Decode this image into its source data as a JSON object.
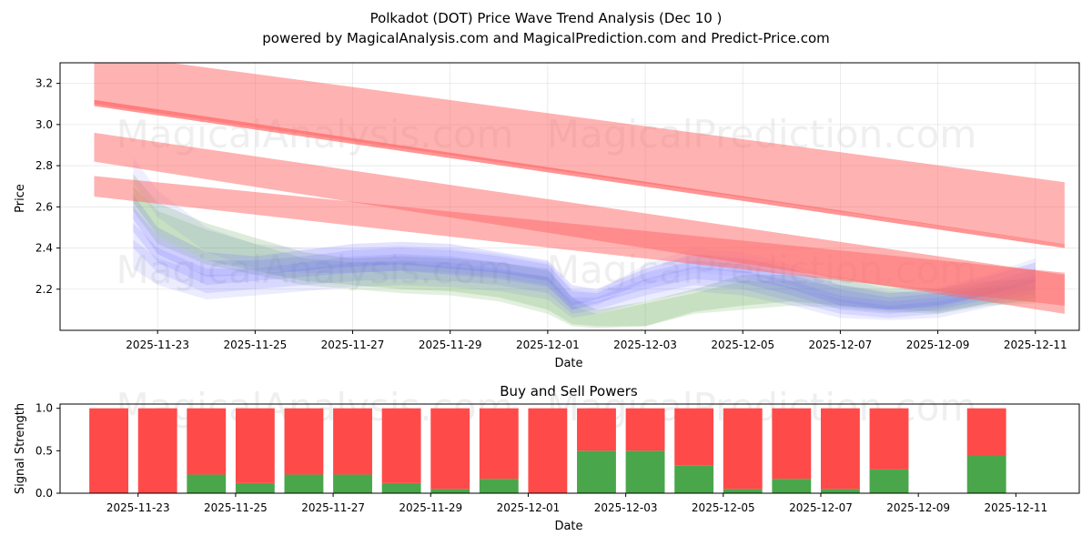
{
  "chart_data": [
    {
      "type": "area",
      "title": "Polkadot (DOT) Price Wave Trend Analysis (Dec 10 )",
      "subtitle": "powered by MagicalAnalysis.com and MagicalPrediction.com and Predict-Price.com",
      "xlabel": "Date",
      "ylabel": "Price",
      "ylim": [
        2.0,
        3.3
      ],
      "xlim_days": [
        -1.0,
        19.9
      ],
      "x_ticks": [
        "2025-11-23",
        "2025-11-25",
        "2025-11-27",
        "2025-11-29",
        "2025-12-01",
        "2025-12-03",
        "2025-12-05",
        "2025-12-07",
        "2025-12-09",
        "2025-12-11"
      ],
      "x_tick_days": [
        1,
        3,
        5,
        7,
        9,
        11,
        13,
        15,
        17,
        19
      ],
      "y_ticks": [
        2.2,
        2.4,
        2.6,
        2.8,
        3.0,
        3.2
      ],
      "grid": true,
      "watermarks": [
        "MagicalAnalysis.com",
        "MagicalPrediction.com"
      ],
      "colors": {
        "red": "#ff6666",
        "blue": "#6666ff",
        "green": "#66aa55"
      },
      "prediction_bands": [
        {
          "name": "upper-trend-band",
          "color": "red",
          "opacity": 0.5,
          "x": [
            -0.3,
            19.6
          ],
          "upper": [
            3.35,
            2.72
          ],
          "lower": [
            3.1,
            2.42
          ]
        },
        {
          "name": "middle-trend-band",
          "color": "red",
          "opacity": 0.5,
          "x": [
            -0.3,
            19.6
          ],
          "upper": [
            2.96,
            2.27
          ],
          "lower": [
            2.82,
            2.08
          ]
        },
        {
          "name": "lower-trend-band",
          "color": "red",
          "opacity": 0.5,
          "x": [
            -0.3,
            19.6
          ],
          "upper": [
            2.75,
            2.28
          ],
          "lower": [
            2.65,
            2.12
          ]
        },
        {
          "name": "trend-line",
          "color": "red",
          "opacity": 0.7,
          "x": [
            -0.3,
            19.6
          ],
          "upper": [
            3.12,
            2.42
          ],
          "lower": [
            3.09,
            2.4
          ]
        }
      ],
      "price_bands": [
        {
          "name": "green-band",
          "color": "green",
          "opacity": 0.22,
          "x": [
            0.5,
            1,
            2,
            3,
            4,
            5,
            6,
            7,
            8,
            9,
            9.5,
            10,
            11,
            12,
            13,
            14,
            15,
            16,
            17,
            18,
            19
          ],
          "upper": [
            2.76,
            2.62,
            2.52,
            2.45,
            2.38,
            2.35,
            2.36,
            2.35,
            2.33,
            2.3,
            2.16,
            2.1,
            2.14,
            2.2,
            2.27,
            2.27,
            2.26,
            2.22,
            2.2,
            2.24,
            2.25
          ],
          "lower": [
            2.62,
            2.46,
            2.34,
            2.29,
            2.24,
            2.22,
            2.2,
            2.19,
            2.16,
            2.1,
            2.03,
            2.02,
            2.02,
            2.09,
            2.12,
            2.14,
            2.12,
            2.1,
            2.09,
            2.13,
            2.14
          ]
        },
        {
          "name": "green-band-2",
          "color": "green",
          "opacity": 0.18,
          "x": [
            0.5,
            1,
            2,
            3,
            4,
            5,
            6,
            7,
            8,
            9,
            9.5,
            10,
            11,
            12,
            13,
            14,
            15,
            16,
            17,
            18,
            19
          ],
          "upper": [
            2.7,
            2.58,
            2.49,
            2.42,
            2.35,
            2.33,
            2.33,
            2.31,
            2.29,
            2.26,
            2.12,
            2.08,
            2.13,
            2.18,
            2.24,
            2.24,
            2.22,
            2.19,
            2.18,
            2.21,
            2.22
          ],
          "lower": [
            2.58,
            2.42,
            2.32,
            2.27,
            2.22,
            2.2,
            2.18,
            2.17,
            2.14,
            2.08,
            2.02,
            2.01,
            2.02,
            2.08,
            2.1,
            2.12,
            2.11,
            2.09,
            2.08,
            2.12,
            2.13
          ]
        },
        {
          "name": "blue-band-1",
          "color": "blue",
          "opacity": 0.18,
          "x": [
            0.5,
            1,
            2,
            3,
            4,
            5,
            6,
            7,
            8,
            9,
            9.5,
            10,
            11,
            12,
            13,
            14,
            15,
            16,
            17,
            18,
            19
          ],
          "upper": [
            2.66,
            2.5,
            2.38,
            2.36,
            2.39,
            2.42,
            2.43,
            2.42,
            2.38,
            2.34,
            2.22,
            2.2,
            2.3,
            2.37,
            2.35,
            2.3,
            2.22,
            2.18,
            2.2,
            2.26,
            2.33
          ],
          "lower": [
            2.54,
            2.37,
            2.26,
            2.27,
            2.29,
            2.31,
            2.32,
            2.3,
            2.28,
            2.24,
            2.12,
            2.15,
            2.22,
            2.28,
            2.26,
            2.2,
            2.12,
            2.1,
            2.12,
            2.17,
            2.23
          ]
        },
        {
          "name": "blue-band-2",
          "color": "blue",
          "opacity": 0.16,
          "x": [
            0.5,
            1,
            2,
            3,
            4,
            5,
            6,
            7,
            8,
            9,
            9.5,
            10,
            11,
            12,
            13,
            14,
            15,
            16,
            17,
            18,
            19
          ],
          "upper": [
            2.6,
            2.46,
            2.34,
            2.34,
            2.36,
            2.39,
            2.4,
            2.39,
            2.36,
            2.32,
            2.19,
            2.18,
            2.28,
            2.34,
            2.32,
            2.27,
            2.2,
            2.16,
            2.18,
            2.23,
            2.3
          ],
          "lower": [
            2.48,
            2.33,
            2.22,
            2.24,
            2.26,
            2.28,
            2.29,
            2.27,
            2.25,
            2.21,
            2.1,
            2.13,
            2.2,
            2.25,
            2.23,
            2.17,
            2.1,
            2.08,
            2.1,
            2.15,
            2.2
          ]
        },
        {
          "name": "blue-band-3",
          "color": "blue",
          "opacity": 0.14,
          "x": [
            0.5,
            1,
            2,
            3,
            4,
            5,
            6,
            7,
            8,
            9,
            9.5,
            10,
            11,
            12,
            13,
            14,
            15,
            16,
            17,
            18,
            19
          ],
          "upper": [
            2.52,
            2.4,
            2.3,
            2.3,
            2.33,
            2.36,
            2.37,
            2.36,
            2.33,
            2.29,
            2.16,
            2.16,
            2.25,
            2.31,
            2.29,
            2.24,
            2.17,
            2.14,
            2.16,
            2.21,
            2.27
          ],
          "lower": [
            2.4,
            2.28,
            2.18,
            2.2,
            2.22,
            2.24,
            2.25,
            2.24,
            2.22,
            2.18,
            2.08,
            2.1,
            2.17,
            2.22,
            2.2,
            2.14,
            2.08,
            2.06,
            2.08,
            2.13,
            2.18
          ]
        },
        {
          "name": "blue-band-4",
          "color": "blue",
          "opacity": 0.12,
          "x": [
            0.5,
            1,
            2,
            3,
            4,
            5,
            6,
            7,
            8,
            9,
            9.5,
            10,
            11,
            12,
            13,
            14,
            15,
            16,
            17,
            18,
            19
          ],
          "upper": [
            2.44,
            2.35,
            2.27,
            2.27,
            2.3,
            2.33,
            2.34,
            2.33,
            2.3,
            2.26,
            2.14,
            2.14,
            2.22,
            2.28,
            2.26,
            2.21,
            2.15,
            2.12,
            2.14,
            2.19,
            2.25
          ],
          "lower": [
            2.3,
            2.22,
            2.15,
            2.17,
            2.19,
            2.21,
            2.22,
            2.21,
            2.19,
            2.15,
            2.06,
            2.08,
            2.14,
            2.19,
            2.17,
            2.12,
            2.06,
            2.05,
            2.06,
            2.11,
            2.16
          ]
        },
        {
          "name": "purple-band",
          "color": "blue",
          "opacity": 0.1,
          "x": [
            0.5,
            1,
            2,
            3,
            4,
            5,
            6,
            7,
            8,
            9,
            9.5,
            10,
            11,
            12,
            13,
            14,
            15,
            16,
            17,
            18,
            19
          ],
          "upper": [
            2.84,
            2.68,
            2.5,
            2.42,
            2.4,
            2.4,
            2.41,
            2.4,
            2.37,
            2.33,
            2.2,
            2.19,
            2.32,
            2.4,
            2.38,
            2.32,
            2.25,
            2.2,
            2.21,
            2.27,
            2.35
          ],
          "lower": [
            2.72,
            2.55,
            2.38,
            2.3,
            2.28,
            2.28,
            2.29,
            2.28,
            2.26,
            2.22,
            2.1,
            2.12,
            2.24,
            2.3,
            2.28,
            2.22,
            2.14,
            2.1,
            2.11,
            2.17,
            2.24
          ]
        }
      ]
    },
    {
      "type": "bar",
      "title": "Buy and Sell Powers",
      "xlabel": "Date",
      "ylabel": "Signal Strength",
      "ylim": [
        0,
        1.05
      ],
      "xlim_days": [
        -1.0,
        19.9
      ],
      "y_ticks": [
        0.0,
        0.5,
        1.0
      ],
      "x_ticks": [
        "2025-11-23",
        "2025-11-25",
        "2025-11-27",
        "2025-11-29",
        "2025-12-01",
        "2025-12-03",
        "2025-12-05",
        "2025-12-07",
        "2025-12-09",
        "2025-12-11"
      ],
      "x_tick_days": [
        1,
        3,
        5,
        7,
        9,
        11,
        13,
        15,
        17,
        19
      ],
      "colors": {
        "buy": "#4aa64a",
        "sell": "#ff4a4a"
      },
      "series": [
        {
          "name": "Buy",
          "values": [
            0.0,
            0.0,
            0.22,
            0.12,
            0.22,
            0.22,
            0.12,
            0.05,
            0.17,
            0.0,
            0.5,
            0.5,
            0.33,
            0.05,
            0.17,
            0.05,
            0.28,
            0.45
          ]
        },
        {
          "name": "Sell",
          "values": [
            1.0,
            1.0,
            0.78,
            0.88,
            0.78,
            0.78,
            0.88,
            0.95,
            0.83,
            1.0,
            0.5,
            0.5,
            0.67,
            0.95,
            0.83,
            0.95,
            0.72,
            0.55
          ]
        }
      ],
      "bar_days": [
        0,
        1,
        2,
        3,
        4,
        5,
        6,
        7,
        8,
        9,
        10,
        11,
        12,
        13,
        14,
        15,
        16,
        18
      ],
      "watermarks": [
        "MagicalAnalysis.com",
        "MagicalPrediction.com"
      ]
    }
  ]
}
